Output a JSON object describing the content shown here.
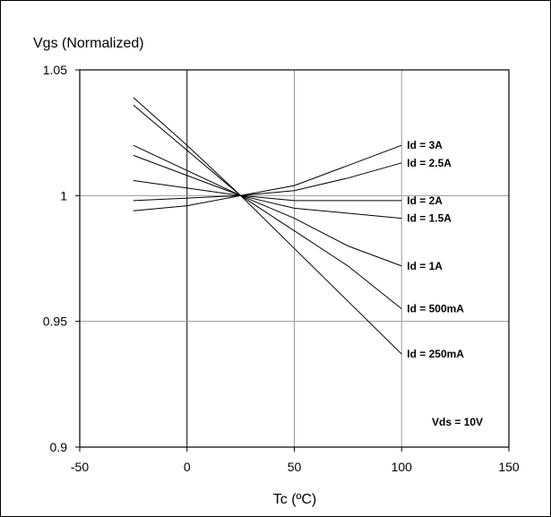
{
  "chart_data": {
    "type": "line",
    "title": "",
    "xlabel": "Tc (ºC)",
    "ylabel": "Vgs (Normalized)",
    "xlim": [
      -50,
      150
    ],
    "ylim": [
      0.9,
      1.05
    ],
    "x_ticks": [
      "-50",
      "0",
      "50",
      "100",
      "150"
    ],
    "y_ticks": [
      "0.9",
      "0.95",
      "1",
      "1.05"
    ],
    "x_tick_values": [
      -50,
      0,
      50,
      100,
      150
    ],
    "y_tick_values": [
      0.9,
      0.95,
      1.0,
      1.05
    ],
    "grid": true,
    "annotation": "Vds = 10V",
    "x": [
      -25,
      0,
      25,
      50,
      75,
      100
    ],
    "series": [
      {
        "name": "Id = 3A",
        "values": [
          0.994,
          0.996,
          1.0,
          1.004,
          1.012,
          1.02
        ]
      },
      {
        "name": "Id = 2.5A",
        "values": [
          0.998,
          0.999,
          1.0,
          1.002,
          1.007,
          1.013
        ]
      },
      {
        "name": "Id = 2A",
        "values": [
          1.006,
          1.003,
          1.0,
          0.998,
          0.998,
          0.998
        ]
      },
      {
        "name": "Id = 1.5A",
        "values": [
          1.016,
          1.008,
          1.0,
          0.995,
          0.993,
          0.991
        ]
      },
      {
        "name": "Id = 1A",
        "values": [
          1.02,
          1.01,
          1.0,
          0.991,
          0.98,
          0.972
        ]
      },
      {
        "name": "Id = 500mA",
        "values": [
          1.036,
          1.018,
          1.0,
          0.986,
          0.972,
          0.955
        ]
      },
      {
        "name": "Id = 250mA",
        "values": [
          1.039,
          1.02,
          1.0,
          0.979,
          0.958,
          0.937
        ]
      }
    ]
  }
}
